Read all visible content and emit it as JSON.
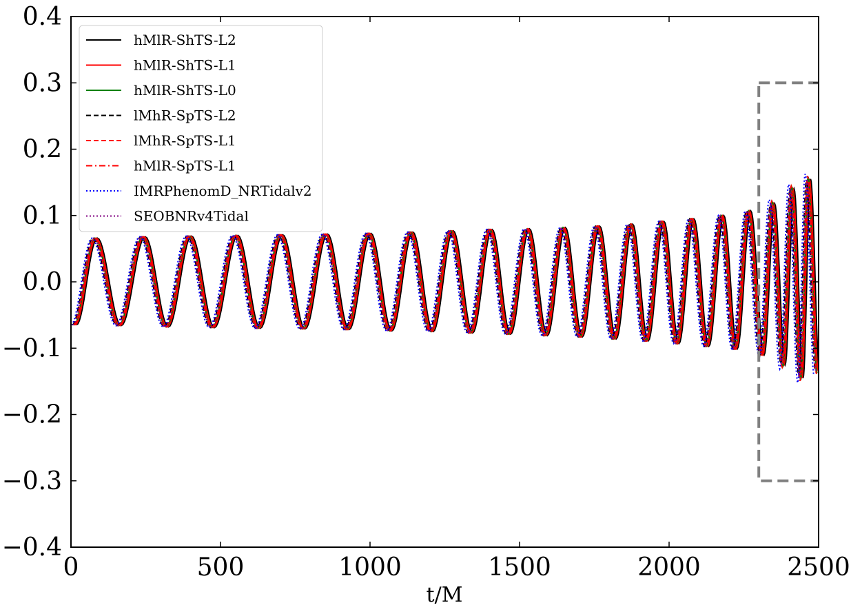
{
  "chart_data": {
    "type": "line",
    "title": "",
    "xlabel": "t/M",
    "ylabel": "",
    "xlim": [
      0,
      2500
    ],
    "ylim": [
      -0.4,
      0.4
    ],
    "xticks": [
      0,
      500,
      1000,
      1500,
      2000,
      2500
    ],
    "xtick_labels": [
      "0",
      "500",
      "1000",
      "1500",
      "2000",
      "2500"
    ],
    "yticks": [
      -0.4,
      -0.3,
      -0.2,
      -0.1,
      0.0,
      0.1,
      0.2,
      0.3,
      0.4
    ],
    "ytick_labels": [
      "−0.4",
      "−0.3",
      "−0.2",
      "−0.1",
      "0.0",
      "0.1",
      "0.2",
      "0.3",
      "0.4"
    ],
    "grid": false,
    "legend_position": "top-left",
    "waveform": {
      "x": [
        0,
        10,
        20,
        40,
        80,
        120,
        160,
        200,
        240,
        280,
        320,
        360,
        400,
        440,
        480,
        520,
        560,
        600,
        640,
        680,
        720,
        760,
        800,
        840,
        880,
        920,
        960,
        1000,
        1040,
        1080,
        1120,
        1160,
        1200,
        1240,
        1280,
        1320,
        1360,
        1400,
        1440,
        1480,
        1520,
        1560,
        1600,
        1640,
        1680,
        1720,
        1760,
        1800,
        1840,
        1880,
        1920,
        1960,
        2000,
        2040,
        2080,
        2120,
        2160,
        2200,
        2240,
        2270,
        2300,
        2320,
        2340,
        2360,
        2380,
        2400,
        2420,
        2440,
        2460,
        2480,
        2490,
        2500
      ],
      "peaks": [
        [
          80,
          0.066
        ],
        [
          240,
          0.068
        ],
        [
          395,
          0.069
        ],
        [
          550,
          0.07
        ],
        [
          700,
          0.071
        ],
        [
          850,
          0.072
        ],
        [
          995,
          0.073
        ],
        [
          1135,
          0.075
        ],
        [
          1270,
          0.077
        ],
        [
          1400,
          0.079
        ],
        [
          1525,
          0.08
        ],
        [
          1645,
          0.082
        ],
        [
          1760,
          0.084
        ],
        [
          1870,
          0.087
        ],
        [
          1975,
          0.091
        ],
        [
          2075,
          0.095
        ],
        [
          2175,
          0.1
        ],
        [
          2265,
          0.107
        ],
        [
          2345,
          0.118
        ],
        [
          2410,
          0.14
        ],
        [
          2465,
          0.155
        ]
      ],
      "troughs": [
        [
          10,
          -0.065
        ],
        [
          160,
          -0.066
        ],
        [
          318,
          -0.068
        ],
        [
          472,
          -0.069
        ],
        [
          625,
          -0.07
        ],
        [
          775,
          -0.071
        ],
        [
          922,
          -0.072
        ],
        [
          1065,
          -0.074
        ],
        [
          1203,
          -0.075
        ],
        [
          1335,
          -0.077
        ],
        [
          1462,
          -0.079
        ],
        [
          1585,
          -0.081
        ],
        [
          1702,
          -0.083
        ],
        [
          1815,
          -0.086
        ],
        [
          1922,
          -0.089
        ],
        [
          2025,
          -0.093
        ],
        [
          2125,
          -0.097
        ],
        [
          2220,
          -0.101
        ],
        [
          2310,
          -0.11
        ],
        [
          2380,
          -0.125
        ],
        [
          2440,
          -0.145
        ],
        [
          2495,
          -0.135
        ]
      ]
    },
    "series": [
      {
        "name": "hMlR-ShTS-L2",
        "color": "#000000",
        "style": "solid"
      },
      {
        "name": "hMlR-ShTS-L1",
        "color": "#ff0000",
        "style": "solid"
      },
      {
        "name": "hMlR-ShTS-L0",
        "color": "#008000",
        "style": "solid"
      },
      {
        "name": "lMhR-SpTS-L2",
        "color": "#000000",
        "style": "dashed"
      },
      {
        "name": "lMhR-SpTS-L1",
        "color": "#ff0000",
        "style": "dashed"
      },
      {
        "name": "hMlR-SpTS-L1",
        "color": "#ff0000",
        "style": "dashdot"
      },
      {
        "name": "IMRPhenomD_NRTidalv2",
        "color": "#0000ff",
        "style": "dotted"
      },
      {
        "name": "SEOBNRv4Tidal",
        "color": "#800080",
        "style": "dotted"
      }
    ],
    "inset_box": {
      "x": [
        2300,
        2500
      ],
      "y": [
        -0.3,
        0.3
      ],
      "color": "#808080",
      "style": "dashed"
    }
  }
}
